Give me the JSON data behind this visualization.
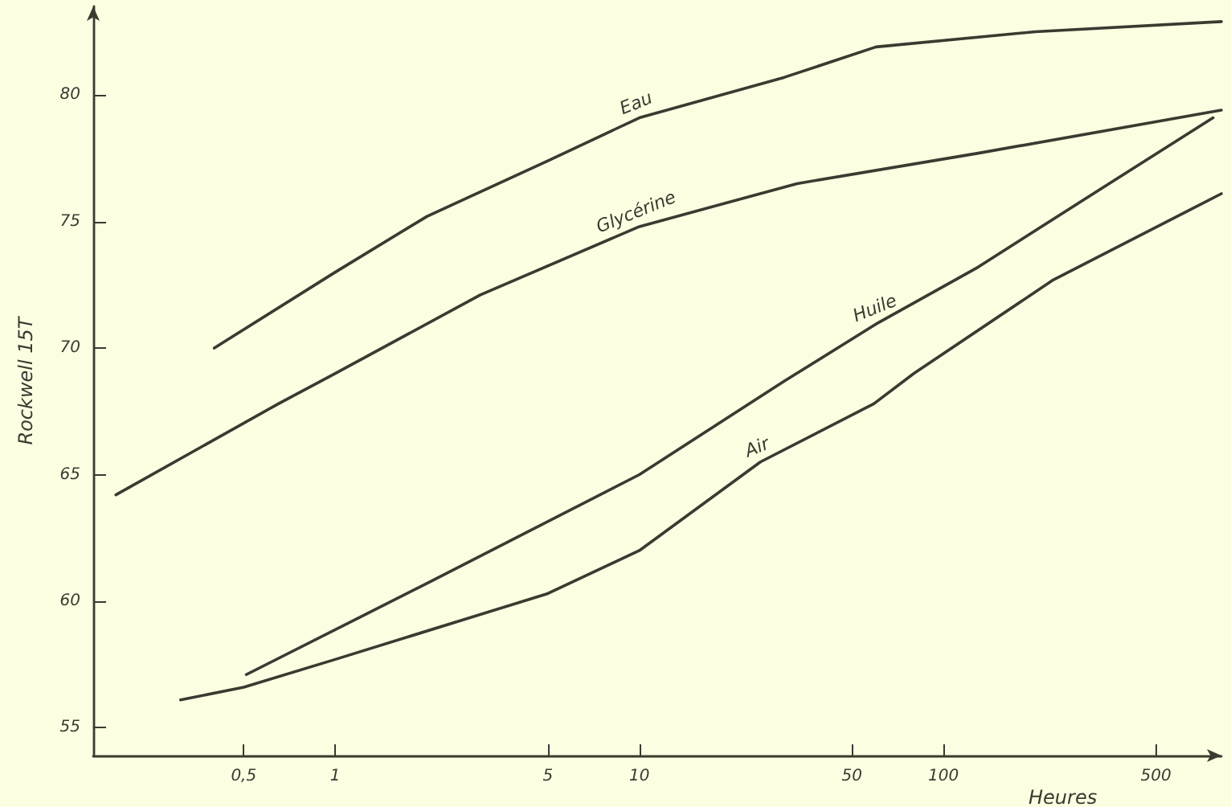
{
  "chart_data": {
    "type": "line",
    "xlabel": "Heures",
    "ylabel": "Rockwell 15T",
    "log": "x",
    "grid": false,
    "legend": false,
    "marker": "none",
    "line_style": "solid",
    "xlim": [
      0.16,
      820
    ],
    "ylim": [
      53.9,
      83.5
    ],
    "xticks": [
      {
        "value": 0.5,
        "label": "0,5"
      },
      1,
      5,
      10,
      50,
      100,
      500
    ],
    "yticks": [
      55,
      60,
      65,
      70,
      75,
      80
    ],
    "series": [
      {
        "name": "Eau",
        "color": "#3a3a30",
        "x": [
          0.4,
          1,
          2,
          5,
          10,
          30,
          60,
          200,
          820
        ],
        "values": [
          70.0,
          73.0,
          75.2,
          77.4,
          79.1,
          80.7,
          81.9,
          82.5,
          82.9
        ]
      },
      {
        "name": "Glycérine",
        "color": "#3a3a30",
        "x": [
          0.19,
          0.65,
          1,
          3,
          10,
          33,
          130,
          820
        ],
        "values": [
          64.2,
          67.8,
          69.0,
          72.1,
          74.8,
          76.5,
          77.7,
          79.4
        ]
      },
      {
        "name": "Huile",
        "color": "#3a3a30",
        "x": [
          0.51,
          2,
          10,
          30,
          61,
          130,
          330,
          770
        ],
        "values": [
          57.1,
          60.7,
          65.0,
          68.7,
          71.0,
          73.2,
          76.3,
          79.1
        ]
      },
      {
        "name": "Air",
        "color": "#3a3a30",
        "x": [
          0.31,
          0.5,
          1,
          5,
          10,
          25,
          59,
          80,
          230,
          820
        ],
        "values": [
          56.1,
          56.6,
          57.7,
          60.3,
          62.0,
          65.5,
          67.8,
          69.0,
          72.7,
          76.1
        ]
      }
    ]
  }
}
